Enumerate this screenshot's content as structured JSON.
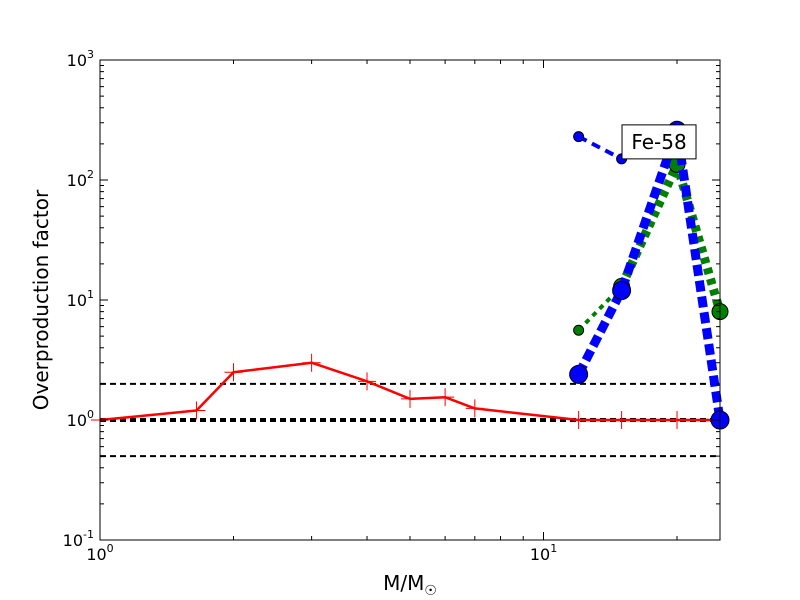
{
  "chart_data": {
    "type": "line",
    "xscale": "log",
    "yscale": "log",
    "xlim": [
      1,
      25
    ],
    "ylim": [
      0.1,
      1000
    ],
    "xlabel_main": "M/M",
    "xlabel_sub": "☉",
    "ylabel": "Overproduction factor",
    "x_ticks": [
      {
        "value": 1,
        "base": "10",
        "exp": "0"
      },
      {
        "value": 10,
        "base": "10",
        "exp": "1"
      }
    ],
    "y_ticks": [
      {
        "value": 0.1,
        "base": "10",
        "exp": "-1"
      },
      {
        "value": 1,
        "base": "10",
        "exp": "0"
      },
      {
        "value": 10,
        "base": "10",
        "exp": "1"
      },
      {
        "value": 100,
        "base": "10",
        "exp": "2"
      },
      {
        "value": 1000,
        "base": "10",
        "exp": "3"
      }
    ],
    "reference_lines": [
      {
        "y": 2,
        "color": "#000000",
        "width": 2,
        "dash": "6,4"
      },
      {
        "y": 1,
        "color": "#000000",
        "width": 4,
        "dash": "6,4"
      },
      {
        "y": 0.5,
        "color": "#000000",
        "width": 2,
        "dash": "6,4"
      }
    ],
    "series": [
      {
        "color": "#ff0000",
        "style": "solid-plus",
        "x": [
          1.0,
          1.65,
          2.0,
          3.0,
          4.0,
          5.0,
          6.0,
          7.0,
          12.0,
          15.0,
          20.0,
          25.0
        ],
        "y": [
          1.0,
          1.2,
          2.5,
          3.0,
          2.1,
          1.5,
          1.55,
          1.25,
          1.0,
          1.0,
          1.0,
          1.0
        ]
      },
      {
        "color": "#0000ff",
        "style": "thin-dash-markers",
        "x": [
          12.0,
          15.0
        ],
        "y": [
          230,
          150
        ]
      },
      {
        "color": "#008000",
        "style": "thin-dot-markers",
        "x": [
          12.0,
          15.0
        ],
        "y": [
          5.6,
          13
        ]
      },
      {
        "color": "#008000",
        "style": "thick-dot-markers",
        "x": [
          15.0,
          20.0,
          25.0
        ],
        "y": [
          13,
          135,
          8
        ]
      },
      {
        "color": "#0000ff",
        "style": "thick-dash-markers",
        "x": [
          12.0,
          15.0,
          20.0,
          25.0
        ],
        "y": [
          2.4,
          12,
          260,
          1.0
        ]
      }
    ],
    "annotation": {
      "text": "Fe-58",
      "x": 20.0,
      "y": 200
    }
  }
}
